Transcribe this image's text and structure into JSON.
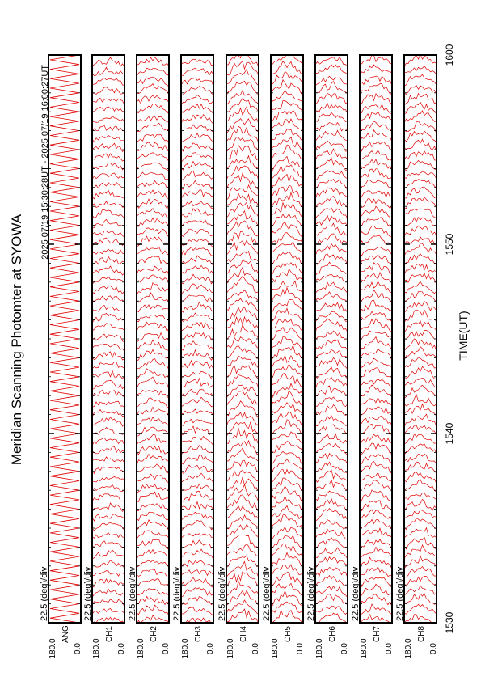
{
  "chart_data": {
    "type": "stacked-profiles",
    "title": "Meridian Scanning Photomter at SYOWA",
    "subtitle": "2025 07/19 15:30:28UT - 2025 07/19 16:00:27UT",
    "xlabel": "TIME(UT)",
    "xlim": [
      0,
      30
    ],
    "xticks": [
      {
        "value": 0,
        "label": "1530"
      },
      {
        "value": 10,
        "label": "1540"
      },
      {
        "value": 20,
        "label": "1550"
      },
      {
        "value": 30,
        "label": "1600"
      }
    ],
    "ylim": [
      0,
      180
    ],
    "yticks": [
      {
        "value": 180,
        "label": "180.0"
      },
      {
        "value": 0,
        "label": "0.0"
      }
    ],
    "color": "#e00000",
    "panels": [
      {
        "label": "ANG",
        "scale": "22.5 (deg)/div"
      },
      {
        "label": "CH1",
        "scale": "22.5 (deg)/div"
      },
      {
        "label": "CH2",
        "scale": "22.5 (deg)/div"
      },
      {
        "label": "CH3",
        "scale": "22.5 (deg)/div"
      },
      {
        "label": "CH4",
        "scale": "22.5 (deg)/div"
      },
      {
        "label": "CH5",
        "scale": "22.5 (deg)/div"
      },
      {
        "label": "CH6",
        "scale": "22.5 (deg)/div"
      },
      {
        "label": "CH7",
        "scale": "22.5 (deg)/div"
      },
      {
        "label": "CH8",
        "scale": "22.5 (deg)/div"
      }
    ]
  }
}
